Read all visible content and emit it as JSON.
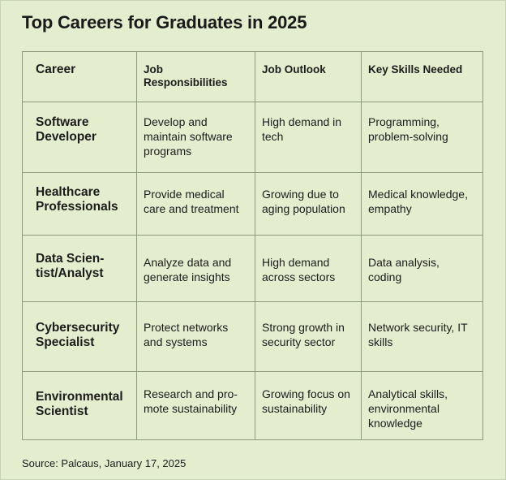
{
  "title": "Top Careers for Graduates in 2025",
  "table": {
    "headers": [
      "Career",
      "Job Responsibilities",
      "Job Outlook",
      "Key Skills Needed"
    ],
    "rows": [
      [
        "Software Developer",
        "Develop and maintain software programs",
        "High demand in tech",
        "Programming, problem-solving"
      ],
      [
        "Healthcare Professionals",
        "Provide medical care and treatment",
        "Growing due to aging population",
        "Medical knowledge, empathy"
      ],
      [
        "Data Scien-tist/Analyst",
        "Analyze data and generate insights",
        "High demand across sectors",
        "Data analysis, coding"
      ],
      [
        "Cybersecurity Specialist",
        "Protect networks and systems",
        "Strong growth in security sector",
        "Network security, IT skills"
      ],
      [
        "Environmental Scientist",
        "Research and pro-mote sustainability",
        "Growing focus on sustainability",
        "Analytical skills, environmental knowledge"
      ]
    ]
  },
  "source": "Source: Palcaus, January 17, 2025",
  "colors": {
    "background": "#e4edce",
    "border": "#8e9a7b",
    "text": "#1c1c1c"
  }
}
